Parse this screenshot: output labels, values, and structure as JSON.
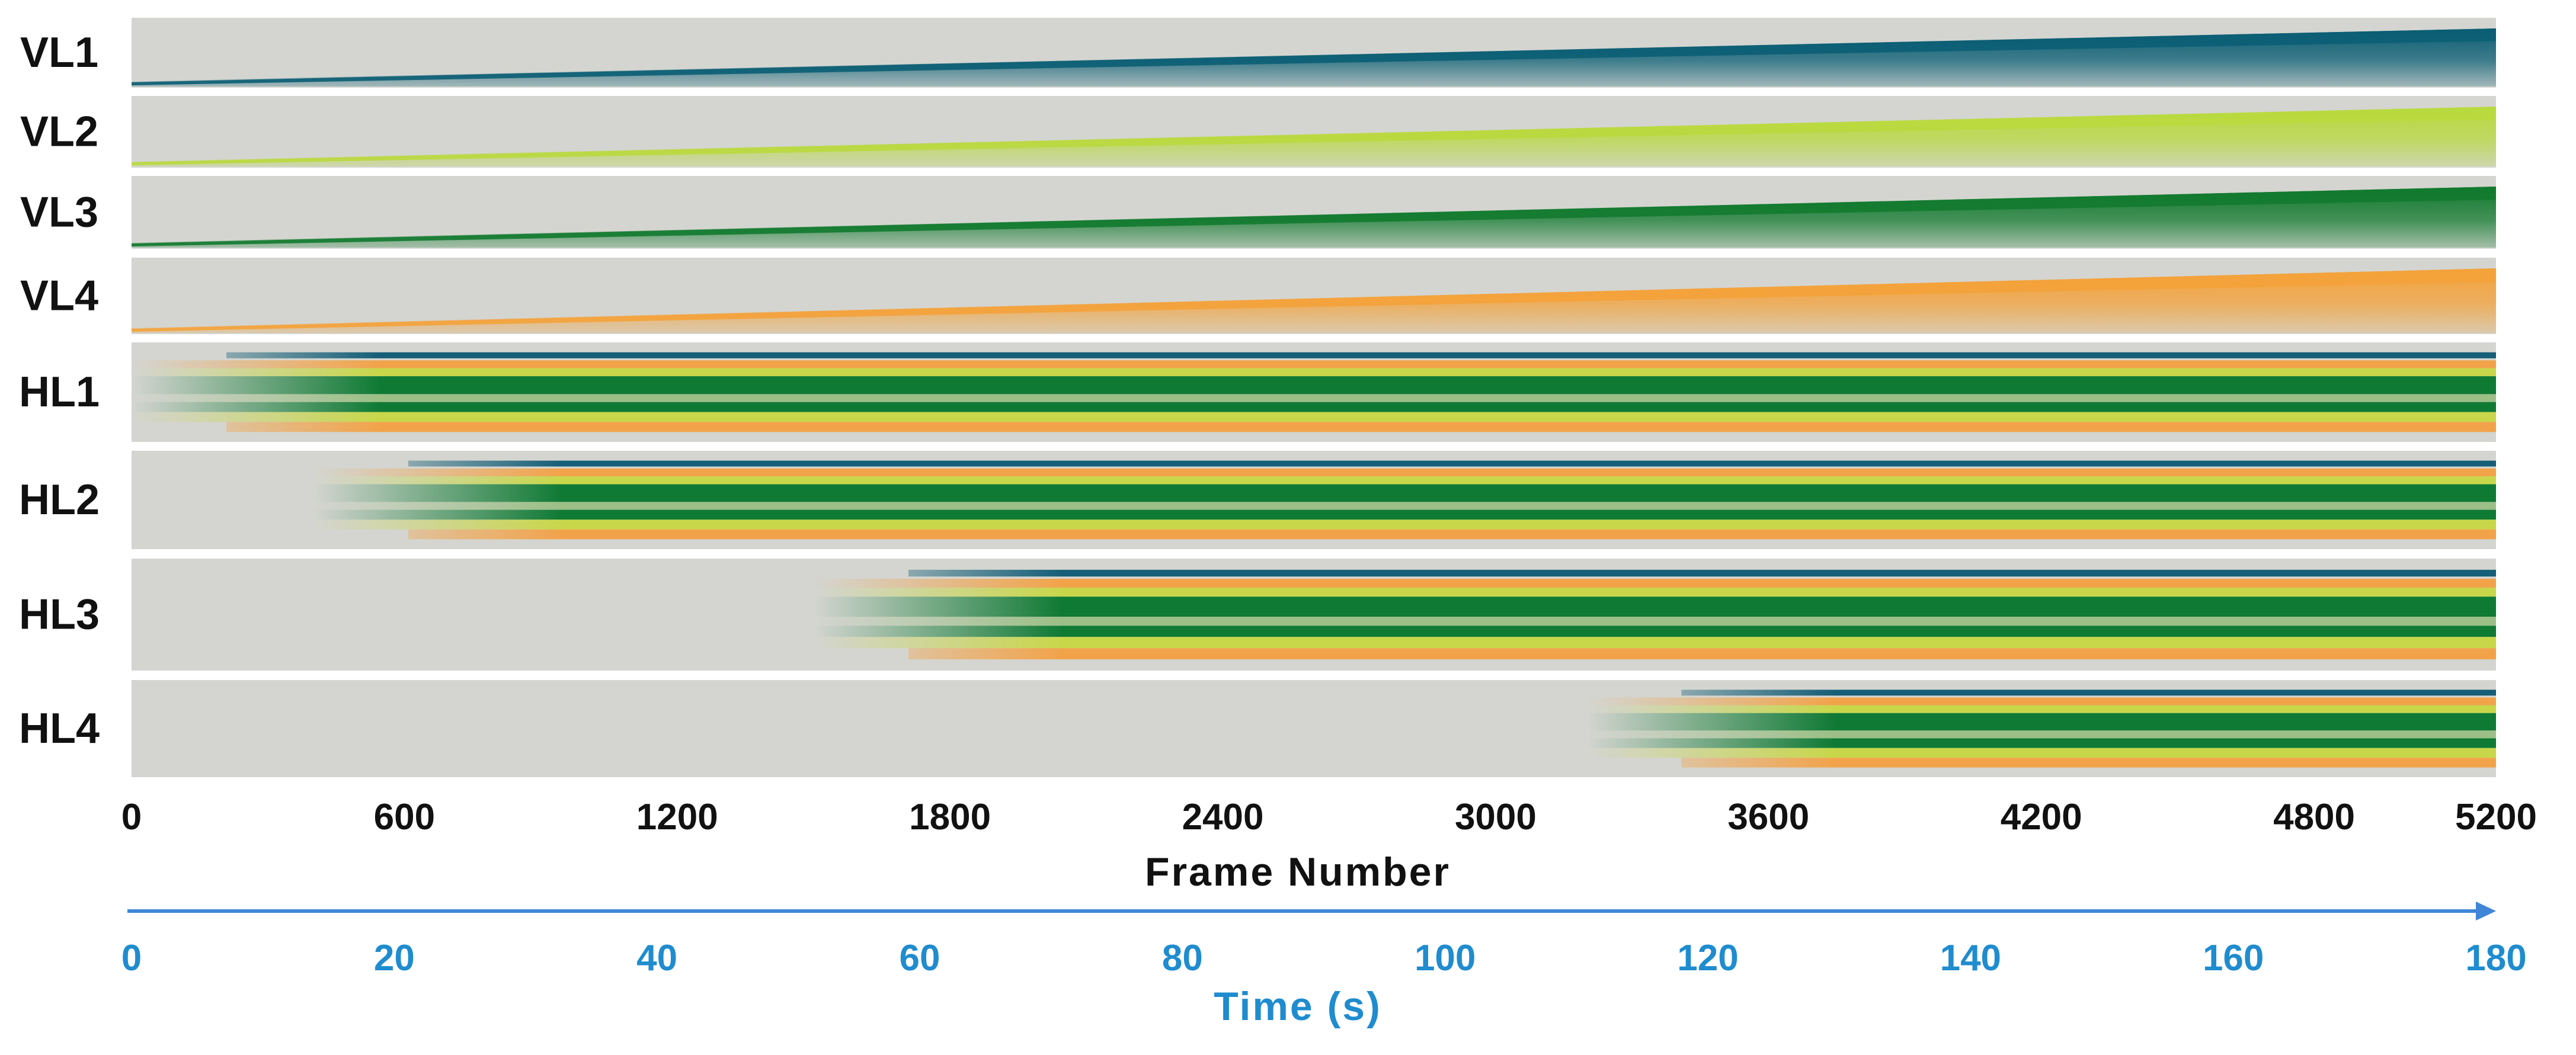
{
  "colors": {
    "background_strip": "#d4d5d0",
    "separator": "#ffffff",
    "time_axis": "#3f86d8",
    "time_text": "#1f8ccf",
    "frame_text": "#111111",
    "vl1": "#0b5e74",
    "vl2": "#b9d93e",
    "vl3": "#127a2f",
    "vl4": "#f4a23a",
    "hl_blue": "#155e77",
    "hl_green": "#0f7a34",
    "hl_lime": "#c8d74a",
    "hl_orange": "#f2a34a",
    "hl_sage": "#9bbf86"
  },
  "chart_data": {
    "type": "area",
    "title": "",
    "xlabel": "Frame Number",
    "secondary_xlabel": "Time (s)",
    "xlim": [
      0,
      5200
    ],
    "x_ticks": [
      "0",
      "600",
      "1200",
      "1800",
      "2400",
      "3000",
      "3600",
      "4200",
      "4800",
      "5200"
    ],
    "time_xlim": [
      0,
      180
    ],
    "time_ticks": [
      "0",
      "20",
      "40",
      "60",
      "80",
      "100",
      "120",
      "140",
      "160",
      "180"
    ],
    "series": [
      {
        "name": "VL1",
        "kind": "vertical",
        "color": "#0b5e74",
        "start_frame": 0
      },
      {
        "name": "VL2",
        "kind": "vertical",
        "color": "#b9d93e",
        "start_frame": 0
      },
      {
        "name": "VL3",
        "kind": "vertical",
        "color": "#127a2f",
        "start_frame": 0
      },
      {
        "name": "VL4",
        "kind": "vertical",
        "color": "#f4a23a",
        "start_frame": 0
      },
      {
        "name": "HL1",
        "kind": "horizontal",
        "start_frame": 0
      },
      {
        "name": "HL2",
        "kind": "horizontal",
        "start_frame": 400
      },
      {
        "name": "HL3",
        "kind": "horizontal",
        "start_frame": 1500
      },
      {
        "name": "HL4",
        "kind": "horizontal",
        "start_frame": 3200
      }
    ]
  }
}
